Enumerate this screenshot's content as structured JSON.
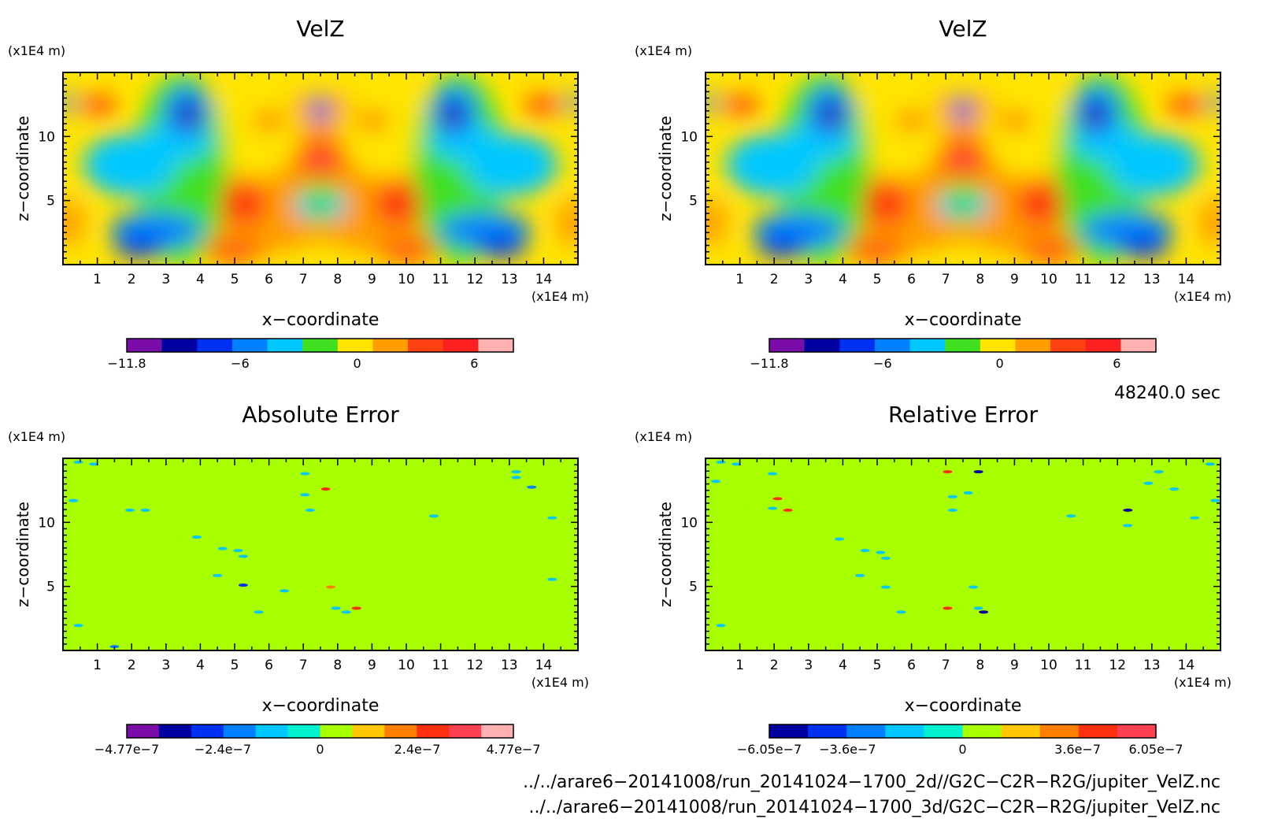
{
  "panels": [
    {
      "title": "VelZ",
      "unit_z": "(x1E4 m)",
      "unit_x": "(x1E4 m)",
      "xlabel": "x−coordinate",
      "ylabel": "z−coordinate",
      "cb_labels": [
        "−11.8",
        "−6",
        "0",
        "6"
      ],
      "kind": "field"
    },
    {
      "title": "VelZ",
      "unit_z": "(x1E4 m)",
      "unit_x": "(x1E4 m)",
      "xlabel": "x−coordinate",
      "ylabel": "z−coordinate",
      "cb_labels": [
        "−11.8",
        "−6",
        "0",
        "6"
      ],
      "kind": "field"
    },
    {
      "title": "Absolute Error",
      "unit_z": "(x1E4 m)",
      "unit_x": "(x1E4 m)",
      "xlabel": "x−coordinate",
      "ylabel": "z−coordinate",
      "cb_labels": [
        "−4.77e−7",
        "−2.4e−7",
        "0",
        "2.4e−7",
        "4.77e−7"
      ],
      "kind": "error_abs"
    },
    {
      "title": "Relative Error",
      "unit_z": "(x1E4 m)",
      "unit_x": "(x1E4 m)",
      "xlabel": "x−coordinate",
      "ylabel": "z−coordinate",
      "cb_labels": [
        "−6.05e−7",
        "−3.6e−7",
        "0",
        "3.6e−7",
        "6.05e−7"
      ],
      "kind": "error_rel"
    }
  ],
  "time_label": "48240.0 sec",
  "file_paths": [
    "../../arare6−20141008/run_20141024−1700_2d//G2C−C2R−R2G/jupiter_VelZ.nc",
    "../../arare6−20141008/run_20141024−1700_3d/G2C−C2R−R2G/jupiter_VelZ.nc"
  ],
  "chart_data": [
    {
      "type": "heatmap",
      "title": "VelZ",
      "xlabel": "x−coordinate",
      "ylabel": "z−coordinate",
      "x_ticks": [
        1,
        2,
        3,
        4,
        5,
        6,
        7,
        8,
        9,
        10,
        11,
        12,
        13,
        14
      ],
      "y_ticks": [
        5,
        10
      ],
      "xlim": [
        0,
        15
      ],
      "ylim": [
        0,
        15
      ],
      "colorbar": {
        "min": -11.8,
        "max": 8,
        "ticks": [
          -11.8,
          -6,
          0,
          6
        ],
        "colors": [
          "#7a0ca8",
          "#0000a0",
          "#0030f0",
          "#0080ff",
          "#00c8ff",
          "#40e020",
          "#ffe400",
          "#ff9c00",
          "#ff4010",
          "#ff2020",
          "#ffb0b0"
        ]
      }
    },
    {
      "type": "heatmap",
      "title": "VelZ",
      "xlabel": "x−coordinate",
      "ylabel": "z−coordinate",
      "x_ticks": [
        1,
        2,
        3,
        4,
        5,
        6,
        7,
        8,
        9,
        10,
        11,
        12,
        13,
        14
      ],
      "y_ticks": [
        5,
        10
      ],
      "xlim": [
        0,
        15
      ],
      "ylim": [
        0,
        15
      ],
      "colorbar": {
        "min": -11.8,
        "max": 8,
        "ticks": [
          -11.8,
          -6,
          0,
          6
        ],
        "colors": [
          "#7a0ca8",
          "#0000a0",
          "#0030f0",
          "#0080ff",
          "#00c8ff",
          "#40e020",
          "#ffe400",
          "#ff9c00",
          "#ff4010",
          "#ff2020",
          "#ffb0b0"
        ]
      }
    },
    {
      "type": "heatmap",
      "title": "Absolute Error",
      "xlabel": "x−coordinate",
      "ylabel": "z−coordinate",
      "x_ticks": [
        1,
        2,
        3,
        4,
        5,
        6,
        7,
        8,
        9,
        10,
        11,
        12,
        13,
        14
      ],
      "y_ticks": [
        5,
        10
      ],
      "xlim": [
        0,
        15
      ],
      "ylim": [
        0,
        15
      ],
      "colorbar": {
        "min": -4.77e-07,
        "max": 4.77e-07,
        "ticks": [
          -4.77e-07,
          -2.4e-07,
          0,
          2.4e-07,
          4.77e-07
        ],
        "colors": [
          "#7a0ca8",
          "#0000a0",
          "#0030f0",
          "#0080ff",
          "#00c8ff",
          "#00f0d0",
          "#a8ff00",
          "#ffc800",
          "#ff8000",
          "#ff3010",
          "#ff4050",
          "#ffb0b0"
        ]
      }
    },
    {
      "type": "heatmap",
      "title": "Relative Error",
      "xlabel": "x−coordinate",
      "ylabel": "z−coordinate",
      "x_ticks": [
        1,
        2,
        3,
        4,
        5,
        6,
        7,
        8,
        9,
        10,
        11,
        12,
        13,
        14
      ],
      "y_ticks": [
        5,
        10
      ],
      "xlim": [
        0,
        15
      ],
      "ylim": [
        0,
        15
      ],
      "colorbar": {
        "min": -6.05e-07,
        "max": 6.05e-07,
        "ticks": [
          -6.05e-07,
          -3.6e-07,
          0,
          3.6e-07,
          6.05e-07
        ],
        "colors": [
          "#0000a0",
          "#0030f0",
          "#0080ff",
          "#00c8ff",
          "#00f0d0",
          "#a8ff00",
          "#ffc800",
          "#ff8000",
          "#ff3010",
          "#ff4050"
        ]
      }
    }
  ]
}
